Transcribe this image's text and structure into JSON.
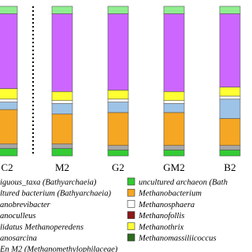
{
  "chart_data": {
    "type": "bar",
    "stacked": true,
    "categories": [
      "C2",
      "M2",
      "G2",
      "GM2",
      "B2"
    ],
    "ylim": [
      0,
      100
    ],
    "series": [
      {
        "name": "uncultured archaeon (Bath",
        "color": "#33cc33",
        "values": [
          5,
          5,
          4,
          4,
          4
        ]
      },
      {
        "name": "anoculleus",
        "color": "#a6a6a6",
        "values": [
          3,
          3,
          3,
          3,
          3
        ]
      },
      {
        "name": "Methanobacterium",
        "color": "#f5a623",
        "values": [
          23,
          20,
          22,
          22,
          18
        ]
      },
      {
        "name": "anobrevibacter",
        "color": "#9dc3e6",
        "values": [
          5,
          7,
          7,
          6,
          13
        ]
      },
      {
        "name": "Methanosphaera",
        "color": "#ffffff",
        "values": [
          2,
          2,
          2,
          2,
          2
        ]
      },
      {
        "name": "Methanofollis",
        "color": "#8b1a1a",
        "values": [
          0,
          0,
          0,
          0,
          0
        ]
      },
      {
        "name": "Methanothrix",
        "color": "#ffff33",
        "values": [
          7,
          6,
          6,
          6,
          6
        ]
      },
      {
        "name": "iguous_taxa (Bathyarchaeia)",
        "color": "#cc66ff",
        "values": [
          50,
          52,
          51,
          52,
          49
        ]
      },
      {
        "name": "ltured bacterium (Bathyarchaeia)",
        "color": "#90ee90",
        "values": [
          5,
          5,
          5,
          5,
          5
        ]
      },
      {
        "name": "lidatus Methanoperedens",
        "color": "#4f81bd",
        "values": [
          0,
          0,
          0,
          0,
          0
        ]
      },
      {
        "name": "anosarcina",
        "color": "#c0504d",
        "values": [
          0,
          0,
          0,
          0,
          0
        ]
      },
      {
        "name": "En M2 (Methanomethylophilaceae)",
        "color": "#1f497d",
        "values": [
          0,
          0,
          0,
          0,
          0
        ]
      },
      {
        "name": "Methanomassiliicoccus",
        "color": "#2e6b1f",
        "values": [
          0,
          0,
          0,
          0,
          0
        ]
      }
    ],
    "legend_left": [
      7,
      8,
      3,
      1,
      9,
      10,
      11
    ],
    "legend_right": [
      0,
      2,
      4,
      5,
      6,
      12
    ]
  }
}
